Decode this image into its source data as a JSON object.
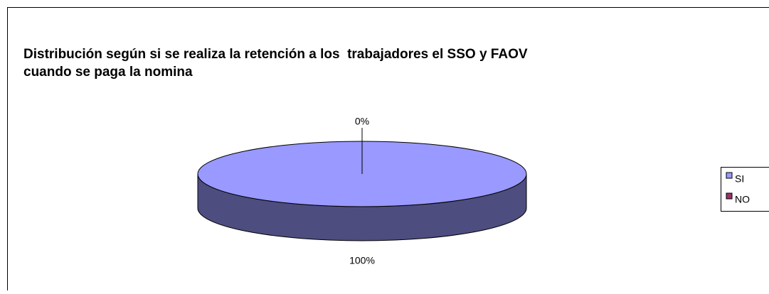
{
  "chart_data": {
    "type": "pie",
    "title": [
      "Distribución según si se realiza la retención a los  trabajadores el SSO y FAOV",
      "cuando se paga la nomina"
    ],
    "categories": [
      "SI",
      "NO"
    ],
    "values": [
      100,
      0
    ],
    "value_labels": [
      "100%",
      "0%"
    ],
    "colors": [
      "#9999ff",
      "#993366"
    ],
    "legend": "right",
    "three_d": true
  }
}
